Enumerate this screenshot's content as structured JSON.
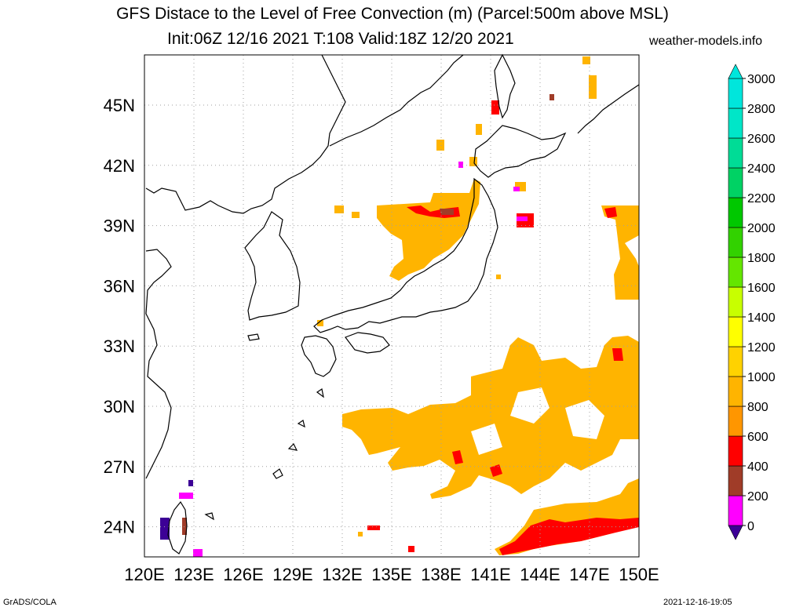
{
  "title": {
    "line1": "GFS Distace to the Level of Free Convection (m) (Parcel:500m above MSL)",
    "line2": "Init:06Z 12/16 2021 T:108 Valid:18Z 12/20 2021",
    "site": "weather-models.info"
  },
  "footer": {
    "left": "GrADS/COLA",
    "right": "2021-12-16-19:05"
  },
  "map": {
    "lon_labels": [
      "120E",
      "123E",
      "126E",
      "129E",
      "132E",
      "135E",
      "138E",
      "141E",
      "144E",
      "147E",
      "150E"
    ],
    "lat_labels": [
      "24N",
      "27N",
      "30N",
      "33N",
      "36N",
      "39N",
      "42N",
      "45N"
    ],
    "lon_range": [
      120,
      150
    ],
    "lat_range": [
      22.5,
      47.5
    ],
    "grid": "dotted"
  },
  "colorbar": {
    "labels": [
      "0",
      "200",
      "400",
      "600",
      "800",
      "1000",
      "1200",
      "1400",
      "1600",
      "1800",
      "2000",
      "2200",
      "2400",
      "2600",
      "2800",
      "3000"
    ],
    "colors": [
      "#3c0096",
      "#ff00ff",
      "#a03c28",
      "#ff0000",
      "#ff9600",
      "#ffb400",
      "#ffd200",
      "#ffff00",
      "#c8ff00",
      "#64e600",
      "#32d200",
      "#00c800",
      "#00d264",
      "#00dc96",
      "#00e6c8",
      "#00e6dc"
    ]
  }
}
